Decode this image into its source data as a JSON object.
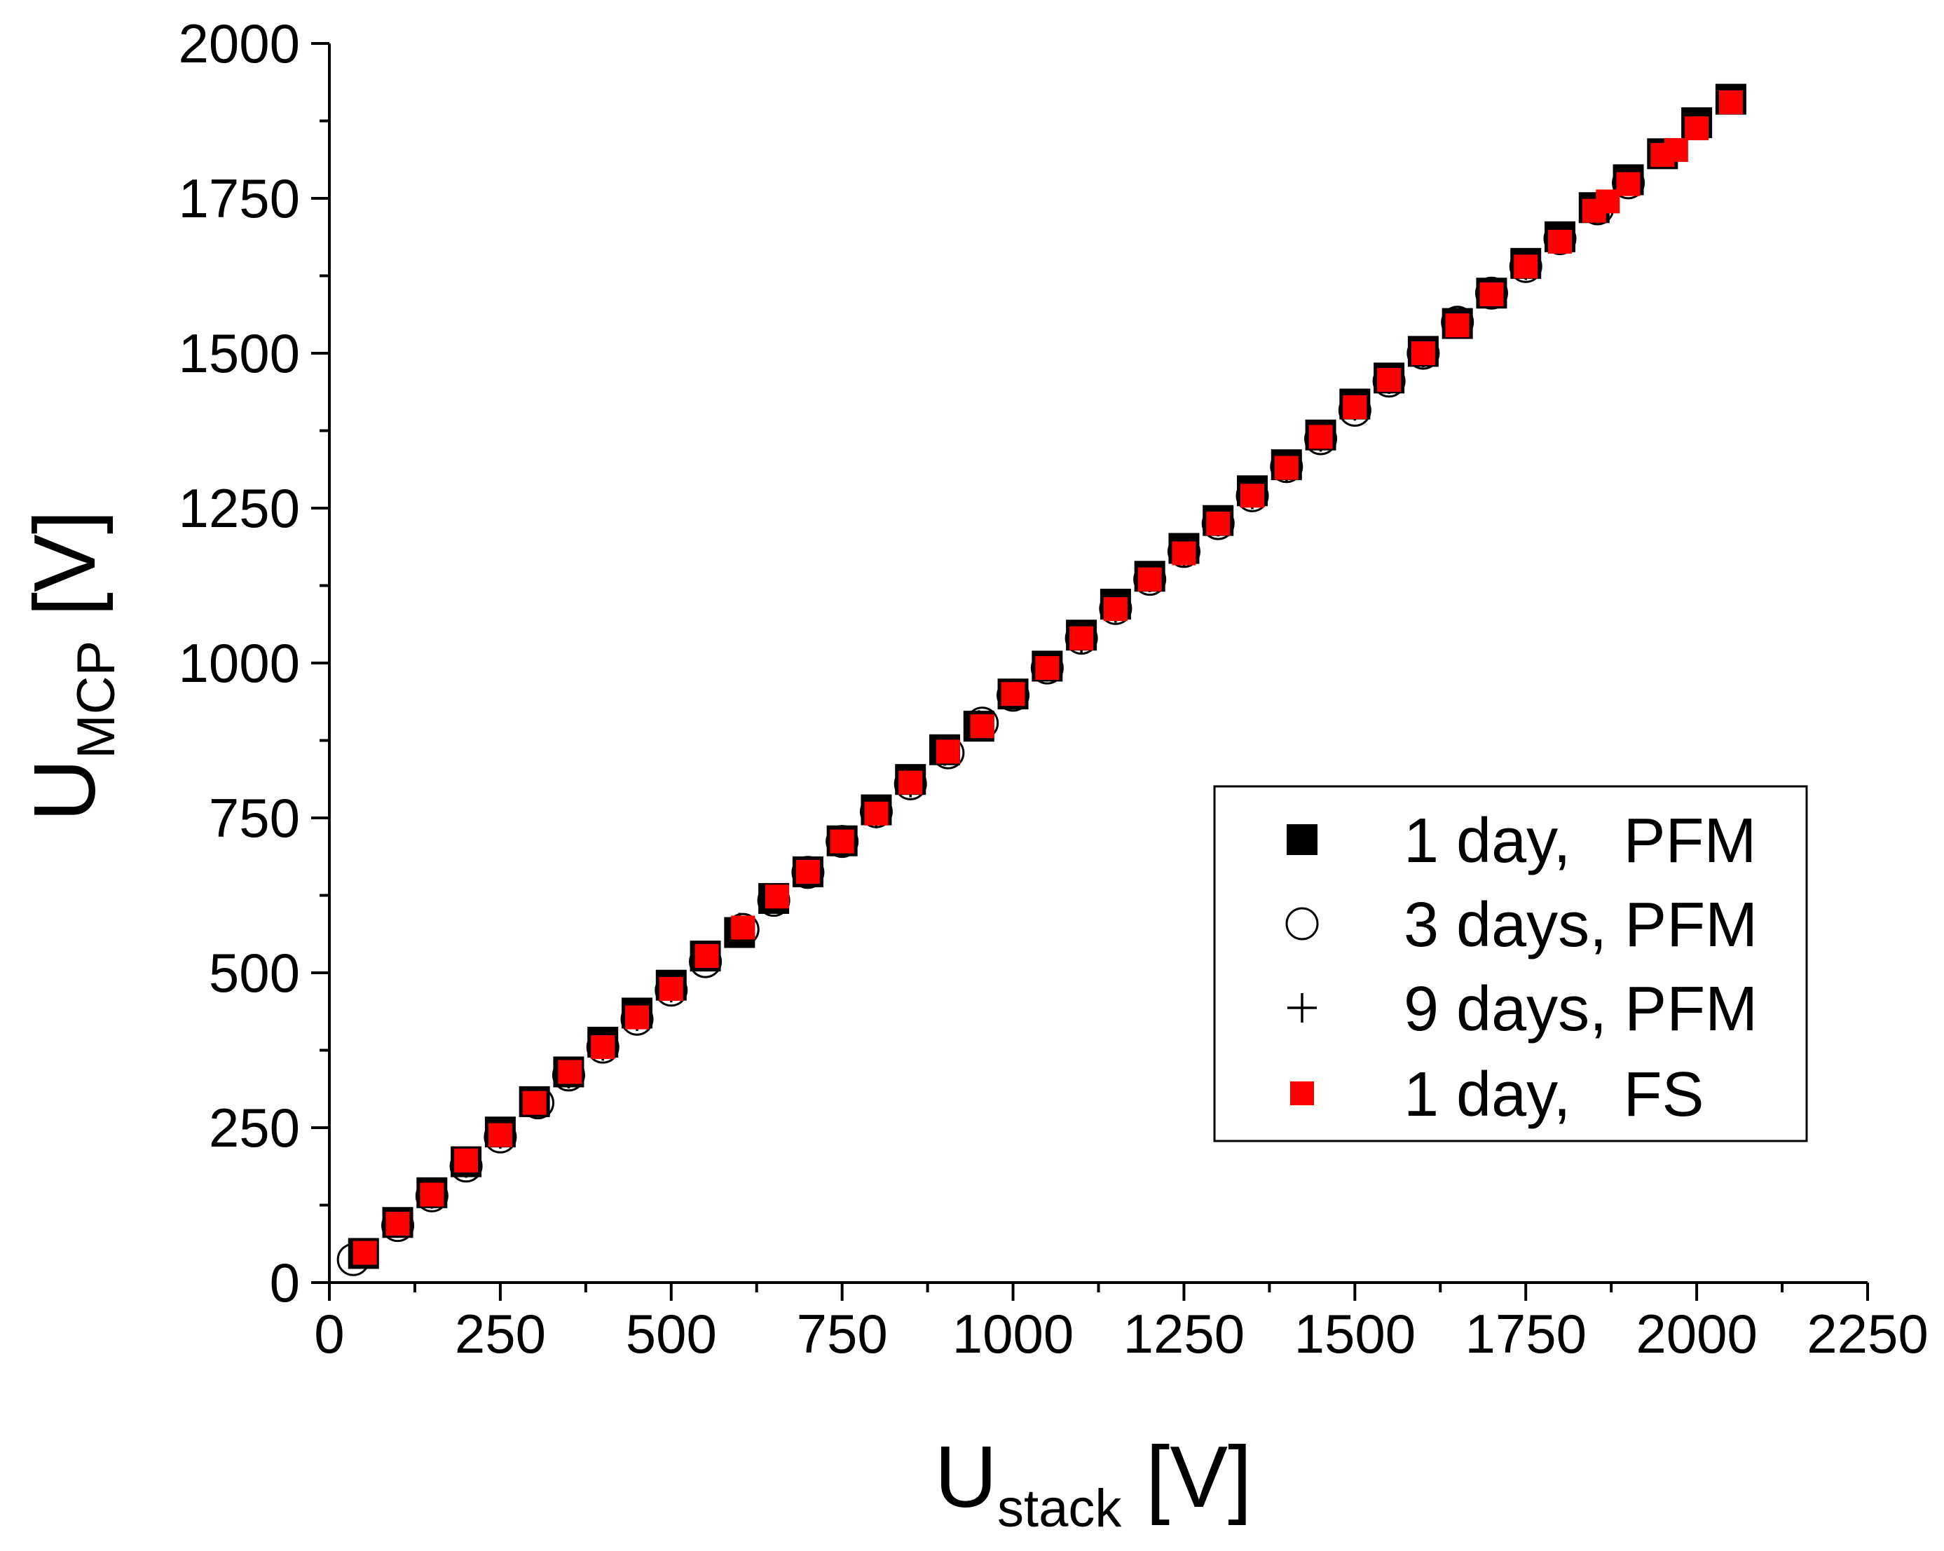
{
  "chart_data": {
    "type": "scatter",
    "xlabel": {
      "main": "U",
      "sub": "stack",
      "unit": " [V]"
    },
    "ylabel": {
      "main": "U",
      "sub": "MCP",
      "unit": " [V]"
    },
    "xlim": [
      0,
      2250
    ],
    "ylim": [
      0,
      2000
    ],
    "x_ticks": [
      "0",
      "250",
      "500",
      "750",
      "1000",
      "1250",
      "1500",
      "1750",
      "2000",
      "2250"
    ],
    "y_ticks": [
      "0",
      "250",
      "500",
      "750",
      "1000",
      "1250",
      "1500",
      "1750",
      "2000"
    ],
    "grid": false,
    "legend_position": "lower-right",
    "series": [
      {
        "name": "1 day,   PFM",
        "marker": "filled-square",
        "color": "#000000",
        "points": [
          [
            50,
            47
          ],
          [
            100,
            97
          ],
          [
            150,
            145
          ],
          [
            200,
            195
          ],
          [
            250,
            243
          ],
          [
            300,
            292
          ],
          [
            350,
            340
          ],
          [
            400,
            388
          ],
          [
            450,
            435
          ],
          [
            500,
            480
          ],
          [
            550,
            527
          ],
          [
            600,
            565
          ],
          [
            650,
            620
          ],
          [
            700,
            663
          ],
          [
            750,
            713
          ],
          [
            800,
            763
          ],
          [
            850,
            812
          ],
          [
            900,
            860
          ],
          [
            950,
            898
          ],
          [
            1000,
            950
          ],
          [
            1050,
            995
          ],
          [
            1100,
            1045
          ],
          [
            1150,
            1095
          ],
          [
            1200,
            1140
          ],
          [
            1250,
            1185
          ],
          [
            1300,
            1230
          ],
          [
            1350,
            1278
          ],
          [
            1400,
            1320
          ],
          [
            1450,
            1368
          ],
          [
            1500,
            1418
          ],
          [
            1550,
            1460
          ],
          [
            1600,
            1503
          ],
          [
            1650,
            1548
          ],
          [
            1700,
            1597
          ],
          [
            1750,
            1645
          ],
          [
            1800,
            1688
          ],
          [
            1850,
            1735
          ],
          [
            1900,
            1780
          ],
          [
            1950,
            1822
          ],
          [
            2000,
            1872
          ],
          [
            2050,
            1910
          ]
        ]
      },
      {
        "name": "3 days, PFM",
        "marker": "open-circle",
        "color": "#000000",
        "points": [
          [
            35,
            37
          ],
          [
            100,
            92
          ],
          [
            150,
            140
          ],
          [
            200,
            188
          ],
          [
            250,
            235
          ],
          [
            305,
            290
          ],
          [
            350,
            335
          ],
          [
            400,
            380
          ],
          [
            450,
            425
          ],
          [
            500,
            472
          ],
          [
            550,
            518
          ],
          [
            605,
            570
          ],
          [
            650,
            617
          ],
          [
            700,
            662
          ],
          [
            750,
            712
          ],
          [
            800,
            760
          ],
          [
            850,
            805
          ],
          [
            905,
            855
          ],
          [
            955,
            903
          ],
          [
            1000,
            948
          ],
          [
            1050,
            992
          ],
          [
            1100,
            1040
          ],
          [
            1150,
            1088
          ],
          [
            1200,
            1135
          ],
          [
            1250,
            1180
          ],
          [
            1300,
            1225
          ],
          [
            1350,
            1270
          ],
          [
            1400,
            1317
          ],
          [
            1450,
            1362
          ],
          [
            1500,
            1408
          ],
          [
            1550,
            1455
          ],
          [
            1600,
            1500
          ],
          [
            1650,
            1550
          ],
          [
            1700,
            1597
          ],
          [
            1750,
            1640
          ],
          [
            1800,
            1685
          ],
          [
            1855,
            1733
          ],
          [
            1900,
            1775
          ]
        ]
      },
      {
        "name": "9 days, PFM",
        "marker": "plus",
        "color": "#000000",
        "points": [
          [
            50,
            48
          ],
          [
            100,
            96
          ],
          [
            150,
            143
          ],
          [
            200,
            193
          ],
          [
            250,
            240
          ],
          [
            300,
            289
          ],
          [
            350,
            337
          ],
          [
            400,
            382
          ],
          [
            450,
            430
          ],
          [
            500,
            476
          ],
          [
            550,
            526
          ],
          [
            600,
            573
          ],
          [
            650,
            621
          ],
          [
            700,
            663
          ],
          [
            750,
            712
          ],
          [
            800,
            757
          ],
          [
            850,
            807
          ],
          [
            900,
            858
          ],
          [
            950,
            900
          ],
          [
            1000,
            951
          ],
          [
            1050,
            994
          ],
          [
            1100,
            1040
          ],
          [
            1150,
            1089
          ],
          [
            1200,
            1138
          ],
          [
            1250,
            1180
          ],
          [
            1300,
            1228
          ],
          [
            1350,
            1272
          ],
          [
            1400,
            1317
          ],
          [
            1450,
            1365
          ],
          [
            1500,
            1415
          ],
          [
            1550,
            1458
          ],
          [
            1600,
            1501
          ],
          [
            1650,
            1548
          ],
          [
            1700,
            1597
          ],
          [
            1750,
            1642
          ],
          [
            1800,
            1685
          ],
          [
            1850,
            1733
          ],
          [
            1900,
            1778
          ],
          [
            1950,
            1822
          ],
          [
            2000,
            1868
          ],
          [
            2050,
            1910
          ]
        ]
      },
      {
        "name": "1 day,   FS",
        "marker": "filled-square-small",
        "color": "#ff0000",
        "points": [
          [
            52,
            48
          ],
          [
            100,
            95
          ],
          [
            150,
            142
          ],
          [
            200,
            197
          ],
          [
            250,
            238
          ],
          [
            300,
            290
          ],
          [
            352,
            340
          ],
          [
            400,
            380
          ],
          [
            450,
            428
          ],
          [
            500,
            474
          ],
          [
            552,
            527
          ],
          [
            605,
            573
          ],
          [
            655,
            623
          ],
          [
            700,
            663
          ],
          [
            750,
            712
          ],
          [
            800,
            757
          ],
          [
            850,
            807
          ],
          [
            905,
            857
          ],
          [
            955,
            898
          ],
          [
            1000,
            950
          ],
          [
            1050,
            992
          ],
          [
            1100,
            1040
          ],
          [
            1150,
            1087
          ],
          [
            1200,
            1135
          ],
          [
            1250,
            1177
          ],
          [
            1300,
            1225
          ],
          [
            1350,
            1270
          ],
          [
            1400,
            1315
          ],
          [
            1450,
            1365
          ],
          [
            1500,
            1413
          ],
          [
            1550,
            1457
          ],
          [
            1600,
            1500
          ],
          [
            1650,
            1545
          ],
          [
            1700,
            1595
          ],
          [
            1750,
            1640
          ],
          [
            1800,
            1680
          ],
          [
            1850,
            1730
          ],
          [
            1870,
            1745
          ],
          [
            1900,
            1773
          ],
          [
            1950,
            1820
          ],
          [
            1970,
            1828
          ],
          [
            2000,
            1863
          ],
          [
            2050,
            1905
          ]
        ]
      }
    ]
  }
}
